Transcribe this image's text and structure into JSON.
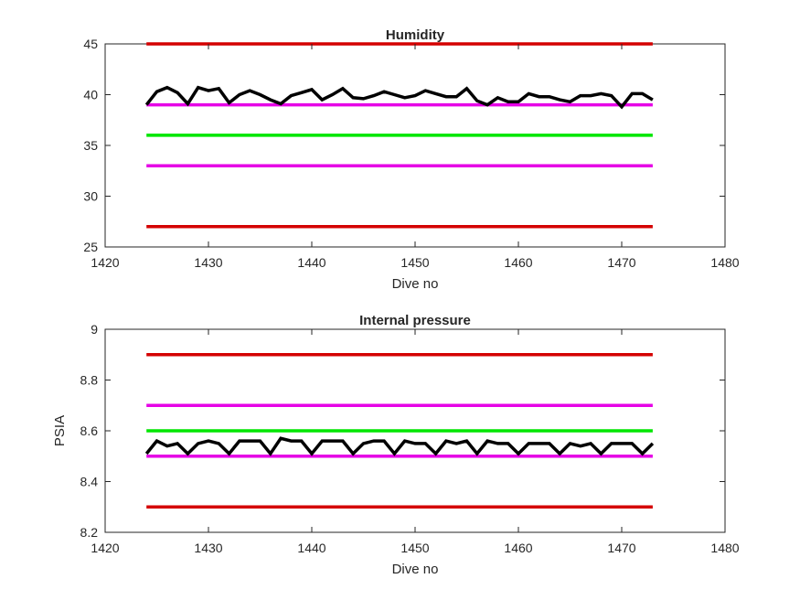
{
  "chart_data": [
    {
      "type": "line",
      "title": "Humidity",
      "xlabel": "Dive no",
      "ylabel": "",
      "xlim": [
        1420,
        1480
      ],
      "ylim": [
        25,
        45
      ],
      "xticks": [
        "1420",
        "1430",
        "1440",
        "1450",
        "1460",
        "1470",
        "1480"
      ],
      "yticks": [
        "25",
        "30",
        "35",
        "40",
        "45"
      ],
      "grid": false,
      "legend": "none",
      "series": [
        {
          "color": "#d40000",
          "width": 3.5,
          "x": [
            1424,
            1473
          ],
          "y": [
            45,
            45
          ]
        },
        {
          "color": "#e600e6",
          "width": 3.5,
          "x": [
            1424,
            1473
          ],
          "y": [
            39,
            39
          ]
        },
        {
          "color": "#00e600",
          "width": 3.5,
          "x": [
            1424,
            1473
          ],
          "y": [
            36,
            36
          ]
        },
        {
          "color": "#e600e6",
          "width": 3.5,
          "x": [
            1424,
            1473
          ],
          "y": [
            33,
            33
          ]
        },
        {
          "color": "#d40000",
          "width": 3.5,
          "x": [
            1424,
            1473
          ],
          "y": [
            27,
            27
          ]
        },
        {
          "color": "#000000",
          "width": 3.5,
          "x": [
            1424,
            1425,
            1426,
            1427,
            1428,
            1429,
            1430,
            1431,
            1432,
            1433,
            1434,
            1435,
            1436,
            1437,
            1438,
            1439,
            1440,
            1441,
            1442,
            1443,
            1444,
            1445,
            1446,
            1447,
            1448,
            1449,
            1450,
            1451,
            1452,
            1453,
            1454,
            1455,
            1456,
            1457,
            1458,
            1459,
            1460,
            1461,
            1462,
            1463,
            1464,
            1465,
            1466,
            1467,
            1468,
            1469,
            1470,
            1471,
            1472,
            1473
          ],
          "y": [
            39.0,
            40.3,
            40.7,
            40.2,
            39.1,
            40.7,
            40.4,
            40.6,
            39.2,
            40.0,
            40.4,
            40.0,
            39.5,
            39.1,
            39.9,
            40.2,
            40.5,
            39.5,
            40.0,
            40.6,
            39.7,
            39.6,
            39.9,
            40.3,
            40.0,
            39.7,
            39.9,
            40.4,
            40.1,
            39.8,
            39.8,
            40.6,
            39.4,
            39.0,
            39.7,
            39.3,
            39.3,
            40.1,
            39.8,
            39.8,
            39.5,
            39.3,
            39.9,
            39.9,
            40.1,
            39.9,
            38.8,
            40.1,
            40.1,
            39.5
          ]
        }
      ]
    },
    {
      "type": "line",
      "title": "Internal pressure",
      "xlabel": "Dive no",
      "ylabel": "PSIA",
      "xlim": [
        1420,
        1480
      ],
      "ylim": [
        8.2,
        9.0
      ],
      "xticks": [
        "1420",
        "1430",
        "1440",
        "1450",
        "1460",
        "1470",
        "1480"
      ],
      "yticks": [
        "8.2",
        "8.4",
        "8.6",
        "8.8",
        "9"
      ],
      "grid": false,
      "legend": "none",
      "series": [
        {
          "color": "#d40000",
          "width": 3.5,
          "x": [
            1424,
            1473
          ],
          "y": [
            8.9,
            8.9
          ]
        },
        {
          "color": "#e600e6",
          "width": 3.5,
          "x": [
            1424,
            1473
          ],
          "y": [
            8.7,
            8.7
          ]
        },
        {
          "color": "#00e600",
          "width": 3.5,
          "x": [
            1424,
            1473
          ],
          "y": [
            8.6,
            8.6
          ]
        },
        {
          "color": "#e600e6",
          "width": 3.5,
          "x": [
            1424,
            1473
          ],
          "y": [
            8.5,
            8.5
          ]
        },
        {
          "color": "#d40000",
          "width": 3.5,
          "x": [
            1424,
            1473
          ],
          "y": [
            8.3,
            8.3
          ]
        },
        {
          "color": "#000000",
          "width": 3.5,
          "x": [
            1424,
            1425,
            1426,
            1427,
            1428,
            1429,
            1430,
            1431,
            1432,
            1433,
            1434,
            1435,
            1436,
            1437,
            1438,
            1439,
            1440,
            1441,
            1442,
            1443,
            1444,
            1445,
            1446,
            1447,
            1448,
            1449,
            1450,
            1451,
            1452,
            1453,
            1454,
            1455,
            1456,
            1457,
            1458,
            1459,
            1460,
            1461,
            1462,
            1463,
            1464,
            1465,
            1466,
            1467,
            1468,
            1469,
            1470,
            1471,
            1472,
            1473
          ],
          "y": [
            8.51,
            8.56,
            8.54,
            8.55,
            8.51,
            8.55,
            8.56,
            8.55,
            8.51,
            8.56,
            8.56,
            8.56,
            8.51,
            8.57,
            8.56,
            8.56,
            8.51,
            8.56,
            8.56,
            8.56,
            8.51,
            8.55,
            8.56,
            8.56,
            8.51,
            8.56,
            8.55,
            8.55,
            8.51,
            8.56,
            8.55,
            8.56,
            8.51,
            8.56,
            8.55,
            8.55,
            8.51,
            8.55,
            8.55,
            8.55,
            8.51,
            8.55,
            8.54,
            8.55,
            8.51,
            8.55,
            8.55,
            8.55,
            8.51,
            8.55
          ]
        }
      ]
    }
  ]
}
